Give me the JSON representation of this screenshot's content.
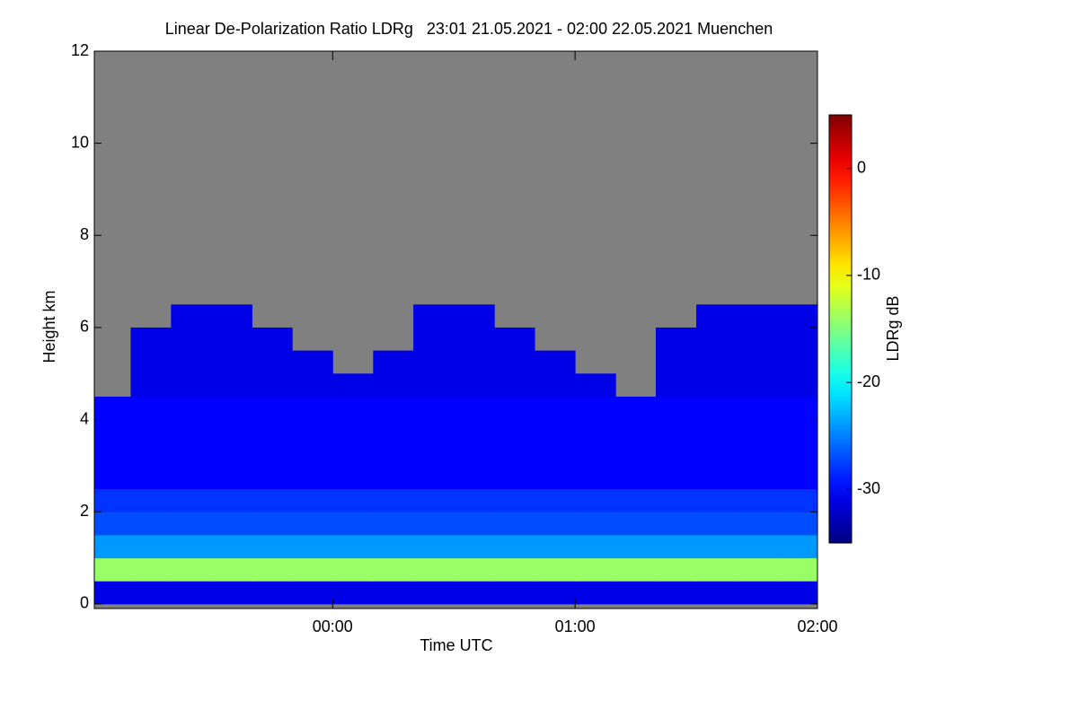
{
  "chart_data": {
    "type": "heatmap",
    "title": "Linear De-Polarization Ratio LDRg   23:01 21.05.2021 - 02:00 22.05.2021 Muenchen",
    "xlabel": "Time UTC",
    "ylabel": "Height km",
    "xlim": [
      -0.983,
      2.0
    ],
    "xticks": [
      {
        "value": 0,
        "label": "00:00"
      },
      {
        "value": 1,
        "label": "01:00"
      },
      {
        "value": 2,
        "label": "02:00"
      }
    ],
    "ylim": [
      -0.1,
      12
    ],
    "yticks": [
      0,
      2,
      4,
      6,
      8,
      10,
      12
    ],
    "colormap": "jet",
    "background": "#808080",
    "colorbar": {
      "label": "LDRg dB",
      "lim": [
        -35,
        5
      ],
      "ticks": [
        0,
        -10,
        -20,
        -30
      ]
    },
    "x": [
      -0.983,
      -0.833,
      -0.667,
      -0.5,
      -0.333,
      -0.167,
      0,
      0.167,
      0.333,
      0.5,
      0.667,
      0.833,
      1,
      1.167,
      1.333,
      1.5,
      1.667,
      1.833,
      2.0
    ],
    "y": [
      0,
      0.5,
      1,
      1.5,
      2,
      2.5,
      3,
      3.5,
      4,
      4.5,
      5,
      5.5,
      6,
      6.5,
      7,
      7.5,
      8,
      8.5,
      9,
      9.5,
      10,
      10.5,
      11,
      11.5,
      12
    ],
    "z": [
      [
        -31,
        -31,
        -31,
        -31,
        -31,
        -31,
        -31,
        -31,
        -31,
        -31,
        -31,
        -31,
        -31,
        -31,
        -31,
        -31,
        -31,
        -31
      ],
      [
        -14,
        -14,
        -14,
        -14,
        -14,
        -14,
        -14,
        -14,
        -14,
        -14,
        -14,
        -14,
        -14,
        -14,
        -14,
        -14,
        -14,
        -14
      ],
      [
        -24,
        -24,
        -24,
        -24,
        -24,
        -24,
        -24,
        -24,
        -24,
        -24,
        -24,
        -24,
        -24,
        -24,
        -24,
        -24,
        -24,
        -24
      ],
      [
        -27,
        -27,
        -27,
        -27,
        -27,
        -27,
        -27,
        -27,
        -27,
        -27,
        -27,
        -27,
        -27,
        -27,
        -27,
        -27,
        -27,
        -27
      ],
      [
        -28,
        -28,
        -28,
        -28,
        -28,
        -28,
        -28,
        -28,
        -28,
        -28,
        -28,
        -28,
        -28,
        -28,
        -28,
        -28,
        -28,
        -28
      ],
      [
        -30,
        -30,
        -30,
        -30,
        -30,
        -30,
        -30,
        -30,
        -30,
        -30,
        -30,
        -30,
        -30,
        -30,
        -30,
        -30,
        -30,
        -30
      ],
      [
        -30,
        -30,
        -30,
        -30,
        -30,
        -30,
        -30,
        -30,
        -30,
        -30,
        -30,
        -30,
        -30,
        -30,
        -30,
        -30,
        -30,
        -30
      ],
      [
        -30,
        -30,
        -30,
        -30,
        -30,
        -30,
        -30,
        -30,
        -30,
        -30,
        -30,
        -30,
        -30,
        -30,
        -30,
        -30,
        -30,
        -30
      ],
      [
        -30,
        -30,
        -30,
        -30,
        -30,
        -30,
        -30,
        -30,
        -30,
        -30,
        -30,
        -30,
        -30,
        -30,
        -30,
        -30,
        -30,
        -30
      ],
      [
        null,
        -31,
        -31,
        -31,
        -31,
        -31,
        -31,
        -31,
        -31,
        -31,
        -31,
        -31,
        -31,
        null,
        -31,
        -31,
        -31,
        -31
      ],
      [
        null,
        -31,
        -31,
        -31,
        -31,
        -31,
        null,
        -31,
        -31,
        -31,
        -31,
        -31,
        null,
        null,
        -31,
        -31,
        -31,
        -31
      ],
      [
        null,
        -31,
        -31,
        -31,
        -31,
        null,
        null,
        null,
        -31,
        -31,
        -31,
        null,
        null,
        null,
        -31,
        -31,
        -31,
        -31
      ],
      [
        null,
        null,
        -31,
        -31,
        null,
        null,
        null,
        null,
        -31,
        -31,
        null,
        null,
        null,
        null,
        null,
        -31,
        -31,
        -31
      ],
      [
        null,
        null,
        null,
        null,
        null,
        null,
        null,
        null,
        null,
        null,
        null,
        null,
        null,
        null,
        null,
        null,
        null,
        null
      ],
      [
        null,
        null,
        null,
        null,
        null,
        null,
        null,
        null,
        null,
        null,
        null,
        null,
        null,
        null,
        null,
        null,
        null,
        null
      ],
      [
        null,
        null,
        null,
        null,
        null,
        null,
        null,
        null,
        null,
        null,
        null,
        null,
        null,
        null,
        null,
        null,
        null,
        null
      ],
      [
        null,
        null,
        null,
        null,
        null,
        null,
        null,
        null,
        null,
        null,
        null,
        null,
        null,
        null,
        null,
        null,
        null,
        null
      ],
      [
        null,
        null,
        null,
        null,
        null,
        null,
        null,
        null,
        null,
        null,
        null,
        null,
        null,
        null,
        null,
        null,
        null,
        null
      ],
      [
        null,
        null,
        null,
        null,
        null,
        null,
        null,
        null,
        null,
        null,
        null,
        null,
        null,
        null,
        null,
        null,
        null,
        null
      ],
      [
        null,
        null,
        null,
        null,
        null,
        null,
        null,
        null,
        null,
        null,
        null,
        null,
        null,
        null,
        null,
        null,
        null,
        null
      ],
      [
        null,
        null,
        null,
        null,
        null,
        null,
        null,
        null,
        null,
        null,
        null,
        null,
        null,
        null,
        null,
        null,
        null,
        null
      ],
      [
        null,
        null,
        null,
        null,
        null,
        null,
        null,
        null,
        null,
        null,
        null,
        null,
        null,
        null,
        null,
        null,
        null,
        null
      ],
      [
        null,
        null,
        null,
        null,
        null,
        null,
        null,
        null,
        null,
        null,
        null,
        null,
        null,
        null,
        null,
        null,
        null,
        null
      ],
      [
        null,
        null,
        null,
        null,
        null,
        null,
        null,
        null,
        null,
        null,
        null,
        null,
        null,
        null,
        null,
        null,
        null,
        null
      ]
    ]
  }
}
